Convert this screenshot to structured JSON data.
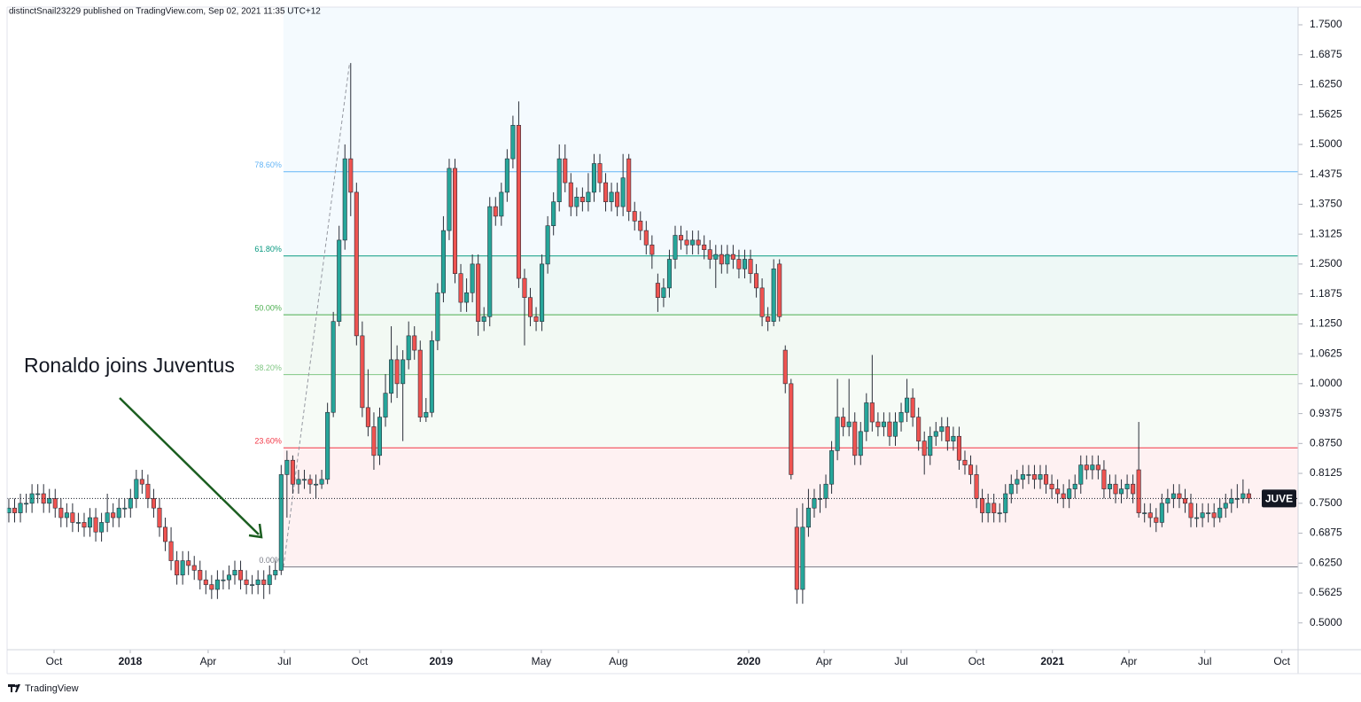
{
  "header": "distinctSnail23229 published on TradingView.com, Sep 02, 2021 11:35 UTC+12",
  "footer": "TradingView",
  "chart_data": {
    "type": "candlestick",
    "symbol": "JUVE",
    "annotation": "Ronaldo joins Juventus",
    "up_color": "#26a69a",
    "down_color": "#ef5350",
    "ylim": [
      0.444,
      1.787
    ],
    "yticks": [
      {
        "value": 0.5,
        "label": "0.5000"
      },
      {
        "value": 0.5625,
        "label": "0.5625"
      },
      {
        "value": 0.625,
        "label": "0.6250"
      },
      {
        "value": 0.6875,
        "label": "0.6875"
      },
      {
        "value": 0.75,
        "label": "0.7500"
      },
      {
        "value": 0.8125,
        "label": "0.8125"
      },
      {
        "value": 0.875,
        "label": "0.8750"
      },
      {
        "value": 0.9375,
        "label": "0.9375"
      },
      {
        "value": 1,
        "label": "1.0000"
      },
      {
        "value": 1.0625,
        "label": "1.0625"
      },
      {
        "value": 1.125,
        "label": "1.1250"
      },
      {
        "value": 1.1875,
        "label": "1.1875"
      },
      {
        "value": 1.25,
        "label": "1.2500"
      },
      {
        "value": 1.3125,
        "label": "1.3125"
      },
      {
        "value": 1.375,
        "label": "1.3750"
      },
      {
        "value": 1.4375,
        "label": "1.4375"
      },
      {
        "value": 1.5,
        "label": "1.5000"
      },
      {
        "value": 1.5625,
        "label": "1.5625"
      },
      {
        "value": 1.625,
        "label": "1.6250"
      },
      {
        "value": 1.6875,
        "label": "1.6875"
      },
      {
        "value": 1.75,
        "label": "1.7500"
      }
    ],
    "xlim": [
      -0.3,
      222.5
    ],
    "xticks": [
      {
        "value": 7.8,
        "label": "Oct"
      },
      {
        "value": 20.95,
        "label": "2018"
      },
      {
        "value": 34.4,
        "label": "Apr"
      },
      {
        "value": 47.55,
        "label": "Jul"
      },
      {
        "value": 60.55,
        "label": "Oct"
      },
      {
        "value": 74.6,
        "label": "2019"
      },
      {
        "value": 91.9,
        "label": "May"
      },
      {
        "value": 105.2,
        "label": "Aug"
      },
      {
        "value": 127.7,
        "label": "2020"
      },
      {
        "value": 140.7,
        "label": "Apr"
      },
      {
        "value": 154,
        "label": "Jul"
      },
      {
        "value": 167,
        "label": "Oct"
      },
      {
        "value": 180.1,
        "label": "2021"
      },
      {
        "value": 193.3,
        "label": "Apr"
      },
      {
        "value": 206.4,
        "label": "Jul"
      },
      {
        "value": 219.7,
        "label": "Oct"
      }
    ],
    "fibonacci": {
      "from": [
        47.4,
        0.617
      ],
      "to": [
        58.8,
        1.67
      ],
      "levels": [
        {
          "ratio": 0,
          "label": "0.00%",
          "price": 0.617,
          "color": "#787b86"
        },
        {
          "ratio": 23.6,
          "label": "23.60%",
          "price": 0.866,
          "color": "#f23645"
        },
        {
          "ratio": 38.2,
          "label": "38.20%",
          "price": 1.019,
          "color": "#81c784"
        },
        {
          "ratio": 50,
          "label": "50.00%",
          "price": 1.144,
          "color": "#4caf50"
        },
        {
          "ratio": 61.8,
          "label": "61.80%",
          "price": 1.267,
          "color": "#089981"
        },
        {
          "ratio": 78.6,
          "label": "78.60%",
          "price": 1.443,
          "color": "#64b5f6"
        }
      ]
    },
    "ohlc": [
      [
        0.73,
        0.76,
        0.71,
        0.74
      ],
      [
        0.74,
        0.76,
        0.71,
        0.73
      ],
      [
        0.73,
        0.77,
        0.71,
        0.75
      ],
      [
        0.75,
        0.77,
        0.73,
        0.75
      ],
      [
        0.75,
        0.79,
        0.73,
        0.77
      ],
      [
        0.77,
        0.79,
        0.75,
        0.77
      ],
      [
        0.77,
        0.79,
        0.73,
        0.75
      ],
      [
        0.75,
        0.78,
        0.73,
        0.76
      ],
      [
        0.76,
        0.78,
        0.72,
        0.74
      ],
      [
        0.74,
        0.76,
        0.7,
        0.72
      ],
      [
        0.72,
        0.75,
        0.7,
        0.73
      ],
      [
        0.73,
        0.75,
        0.69,
        0.71
      ],
      [
        0.71,
        0.73,
        0.69,
        0.71
      ],
      [
        0.71,
        0.73,
        0.68,
        0.7
      ],
      [
        0.7,
        0.74,
        0.68,
        0.72
      ],
      [
        0.72,
        0.74,
        0.67,
        0.69
      ],
      [
        0.69,
        0.73,
        0.67,
        0.71
      ],
      [
        0.71,
        0.77,
        0.69,
        0.73
      ],
      [
        0.73,
        0.75,
        0.7,
        0.72
      ],
      [
        0.72,
        0.76,
        0.7,
        0.74
      ],
      [
        0.74,
        0.76,
        0.72,
        0.74
      ],
      [
        0.74,
        0.78,
        0.72,
        0.76
      ],
      [
        0.76,
        0.82,
        0.74,
        0.8
      ],
      [
        0.8,
        0.82,
        0.77,
        0.79
      ],
      [
        0.79,
        0.81,
        0.74,
        0.76
      ],
      [
        0.76,
        0.78,
        0.72,
        0.74
      ],
      [
        0.74,
        0.76,
        0.68,
        0.7
      ],
      [
        0.7,
        0.72,
        0.65,
        0.67
      ],
      [
        0.67,
        0.7,
        0.61,
        0.63
      ],
      [
        0.63,
        0.65,
        0.58,
        0.6
      ],
      [
        0.6,
        0.65,
        0.58,
        0.63
      ],
      [
        0.63,
        0.65,
        0.6,
        0.62
      ],
      [
        0.62,
        0.64,
        0.59,
        0.61
      ],
      [
        0.61,
        0.63,
        0.57,
        0.59
      ],
      [
        0.59,
        0.61,
        0.56,
        0.58
      ],
      [
        0.58,
        0.6,
        0.55,
        0.57
      ],
      [
        0.57,
        0.61,
        0.55,
        0.59
      ],
      [
        0.59,
        0.61,
        0.57,
        0.59
      ],
      [
        0.59,
        0.62,
        0.57,
        0.6
      ],
      [
        0.6,
        0.63,
        0.58,
        0.61
      ],
      [
        0.61,
        0.63,
        0.57,
        0.59
      ],
      [
        0.59,
        0.61,
        0.56,
        0.58
      ],
      [
        0.58,
        0.6,
        0.56,
        0.58
      ],
      [
        0.58,
        0.61,
        0.56,
        0.59
      ],
      [
        0.59,
        0.61,
        0.55,
        0.58
      ],
      [
        0.58,
        0.62,
        0.56,
        0.6
      ],
      [
        0.6,
        0.63,
        0.59,
        0.61
      ],
      [
        0.61,
        0.83,
        0.6,
        0.81
      ],
      [
        0.81,
        0.86,
        0.72,
        0.84
      ],
      [
        0.84,
        0.85,
        0.77,
        0.79
      ],
      [
        0.79,
        0.82,
        0.77,
        0.8
      ],
      [
        0.8,
        0.82,
        0.78,
        0.8
      ],
      [
        0.8,
        0.81,
        0.77,
        0.79
      ],
      [
        0.79,
        0.81,
        0.76,
        0.79
      ],
      [
        0.79,
        0.82,
        0.78,
        0.8
      ],
      [
        0.8,
        0.96,
        0.79,
        0.94
      ],
      [
        0.94,
        1.15,
        0.93,
        1.13
      ],
      [
        1.13,
        1.33,
        1.12,
        1.3
      ],
      [
        1.3,
        1.5,
        1.28,
        1.47
      ],
      [
        1.47,
        1.67,
        1.35,
        1.4
      ],
      [
        1.4,
        1.42,
        1.08,
        1.1
      ],
      [
        1.1,
        1.13,
        0.93,
        0.95
      ],
      [
        0.95,
        1.03,
        0.89,
        0.91
      ],
      [
        0.91,
        0.94,
        0.82,
        0.85
      ],
      [
        0.85,
        0.95,
        0.83,
        0.93
      ],
      [
        0.93,
        1.02,
        0.91,
        0.98
      ],
      [
        0.98,
        1.12,
        0.96,
        1.05
      ],
      [
        1.05,
        1.08,
        0.97,
        1.0
      ],
      [
        1.0,
        1.07,
        0.88,
        1.05
      ],
      [
        1.05,
        1.13,
        1.03,
        1.1
      ],
      [
        1.1,
        1.12,
        1.05,
        1.07
      ],
      [
        1.07,
        1.09,
        0.92,
        0.93
      ],
      [
        0.93,
        0.97,
        0.92,
        0.94
      ],
      [
        0.94,
        1.11,
        0.93,
        1.09
      ],
      [
        1.09,
        1.21,
        1.07,
        1.19
      ],
      [
        1.19,
        1.35,
        1.17,
        1.32
      ],
      [
        1.32,
        1.47,
        1.3,
        1.45
      ],
      [
        1.45,
        1.47,
        1.21,
        1.23
      ],
      [
        1.23,
        1.25,
        1.15,
        1.17
      ],
      [
        1.17,
        1.22,
        1.15,
        1.19
      ],
      [
        1.19,
        1.27,
        1.17,
        1.25
      ],
      [
        1.25,
        1.27,
        1.1,
        1.13
      ],
      [
        1.13,
        1.16,
        1.11,
        1.14
      ],
      [
        1.14,
        1.39,
        1.12,
        1.37
      ],
      [
        1.37,
        1.39,
        1.33,
        1.35
      ],
      [
        1.35,
        1.42,
        1.33,
        1.4
      ],
      [
        1.4,
        1.49,
        1.38,
        1.47
      ],
      [
        1.47,
        1.56,
        1.45,
        1.54
      ],
      [
        1.54,
        1.59,
        1.2,
        1.22
      ],
      [
        1.22,
        1.24,
        1.08,
        1.18
      ],
      [
        1.18,
        1.2,
        1.12,
        1.14
      ],
      [
        1.14,
        1.16,
        1.11,
        1.13
      ],
      [
        1.13,
        1.27,
        1.11,
        1.25
      ],
      [
        1.25,
        1.35,
        1.23,
        1.33
      ],
      [
        1.33,
        1.4,
        1.31,
        1.38
      ],
      [
        1.38,
        1.5,
        1.36,
        1.47
      ],
      [
        1.47,
        1.5,
        1.4,
        1.42
      ],
      [
        1.42,
        1.44,
        1.35,
        1.37
      ],
      [
        1.37,
        1.41,
        1.35,
        1.39
      ],
      [
        1.39,
        1.41,
        1.36,
        1.38
      ],
      [
        1.38,
        1.44,
        1.36,
        1.4
      ],
      [
        1.4,
        1.48,
        1.38,
        1.46
      ],
      [
        1.46,
        1.48,
        1.4,
        1.42
      ],
      [
        1.42,
        1.44,
        1.36,
        1.38
      ],
      [
        1.38,
        1.42,
        1.36,
        1.4
      ],
      [
        1.4,
        1.42,
        1.35,
        1.37
      ],
      [
        1.37,
        1.48,
        1.35,
        1.43
      ],
      [
        1.47,
        1.48,
        1.34,
        1.36
      ],
      [
        1.36,
        1.38,
        1.32,
        1.34
      ],
      [
        1.34,
        1.36,
        1.3,
        1.32
      ],
      [
        1.32,
        1.34,
        1.27,
        1.29
      ],
      [
        1.29,
        1.31,
        1.24,
        1.27
      ],
      [
        1.21,
        1.23,
        1.15,
        1.18
      ],
      [
        1.18,
        1.22,
        1.16,
        1.2
      ],
      [
        1.2,
        1.28,
        1.18,
        1.26
      ],
      [
        1.26,
        1.33,
        1.24,
        1.31
      ],
      [
        1.31,
        1.33,
        1.28,
        1.3
      ],
      [
        1.3,
        1.32,
        1.27,
        1.29
      ],
      [
        1.29,
        1.32,
        1.27,
        1.3
      ],
      [
        1.3,
        1.32,
        1.27,
        1.29
      ],
      [
        1.29,
        1.31,
        1.26,
        1.28
      ],
      [
        1.28,
        1.3,
        1.24,
        1.26
      ],
      [
        1.26,
        1.29,
        1.2,
        1.27
      ],
      [
        1.27,
        1.29,
        1.23,
        1.25
      ],
      [
        1.25,
        1.29,
        1.23,
        1.27
      ],
      [
        1.27,
        1.29,
        1.24,
        1.26
      ],
      [
        1.26,
        1.28,
        1.22,
        1.24
      ],
      [
        1.24,
        1.28,
        1.22,
        1.26
      ],
      [
        1.26,
        1.28,
        1.21,
        1.23
      ],
      [
        1.23,
        1.25,
        1.18,
        1.2
      ],
      [
        1.2,
        1.22,
        1.12,
        1.14
      ],
      [
        1.14,
        1.16,
        1.11,
        1.13
      ],
      [
        1.13,
        1.26,
        1.12,
        1.24
      ],
      [
        1.25,
        1.26,
        1.13,
        1.14
      ],
      [
        1.07,
        1.08,
        0.98,
        1.0
      ],
      [
        1.0,
        1.01,
        0.8,
        0.81
      ],
      [
        0.7,
        0.74,
        0.54,
        0.57
      ],
      [
        0.57,
        0.75,
        0.54,
        0.7
      ],
      [
        0.7,
        0.78,
        0.68,
        0.74
      ],
      [
        0.74,
        0.78,
        0.72,
        0.76
      ],
      [
        0.76,
        0.79,
        0.73,
        0.76
      ],
      [
        0.76,
        0.81,
        0.74,
        0.79
      ],
      [
        0.79,
        0.88,
        0.77,
        0.86
      ],
      [
        0.86,
        1.01,
        0.84,
        0.93
      ],
      [
        0.93,
        0.95,
        0.89,
        0.91
      ],
      [
        0.91,
        1.01,
        0.89,
        0.92
      ],
      [
        0.92,
        0.94,
        0.83,
        0.85
      ],
      [
        0.85,
        0.92,
        0.83,
        0.9
      ],
      [
        0.9,
        0.98,
        0.88,
        0.96
      ],
      [
        0.96,
        1.06,
        0.9,
        0.92
      ],
      [
        0.92,
        0.94,
        0.89,
        0.91
      ],
      [
        0.91,
        0.94,
        0.89,
        0.92
      ],
      [
        0.92,
        0.94,
        0.87,
        0.89
      ],
      [
        0.89,
        0.94,
        0.87,
        0.92
      ],
      [
        0.92,
        0.96,
        0.9,
        0.94
      ],
      [
        0.94,
        1.01,
        0.92,
        0.97
      ],
      [
        0.97,
        0.99,
        0.91,
        0.93
      ],
      [
        0.93,
        0.95,
        0.86,
        0.88
      ],
      [
        0.88,
        0.9,
        0.81,
        0.85
      ],
      [
        0.85,
        0.91,
        0.83,
        0.89
      ],
      [
        0.89,
        0.92,
        0.87,
        0.9
      ],
      [
        0.9,
        0.93,
        0.88,
        0.91
      ],
      [
        0.91,
        0.93,
        0.86,
        0.88
      ],
      [
        0.88,
        0.91,
        0.86,
        0.89
      ],
      [
        0.89,
        0.91,
        0.82,
        0.84
      ],
      [
        0.84,
        0.86,
        0.81,
        0.83
      ],
      [
        0.83,
        0.85,
        0.79,
        0.81
      ],
      [
        0.81,
        0.83,
        0.74,
        0.76
      ],
      [
        0.76,
        0.78,
        0.71,
        0.73
      ],
      [
        0.73,
        0.77,
        0.71,
        0.75
      ],
      [
        0.75,
        0.77,
        0.71,
        0.73
      ],
      [
        0.73,
        0.75,
        0.71,
        0.73
      ],
      [
        0.73,
        0.79,
        0.71,
        0.77
      ],
      [
        0.77,
        0.81,
        0.75,
        0.79
      ],
      [
        0.79,
        0.82,
        0.77,
        0.8
      ],
      [
        0.8,
        0.83,
        0.78,
        0.81
      ],
      [
        0.81,
        0.83,
        0.79,
        0.81
      ],
      [
        0.81,
        0.83,
        0.78,
        0.8
      ],
      [
        0.8,
        0.83,
        0.78,
        0.81
      ],
      [
        0.81,
        0.83,
        0.77,
        0.79
      ],
      [
        0.79,
        0.81,
        0.76,
        0.78
      ],
      [
        0.78,
        0.8,
        0.75,
        0.77
      ],
      [
        0.77,
        0.79,
        0.74,
        0.76
      ],
      [
        0.76,
        0.8,
        0.74,
        0.78
      ],
      [
        0.78,
        0.81,
        0.76,
        0.79
      ],
      [
        0.79,
        0.85,
        0.77,
        0.83
      ],
      [
        0.83,
        0.85,
        0.8,
        0.82
      ],
      [
        0.82,
        0.85,
        0.8,
        0.83
      ],
      [
        0.83,
        0.85,
        0.8,
        0.82
      ],
      [
        0.82,
        0.84,
        0.76,
        0.78
      ],
      [
        0.78,
        0.81,
        0.76,
        0.79
      ],
      [
        0.79,
        0.81,
        0.75,
        0.77
      ],
      [
        0.77,
        0.8,
        0.75,
        0.78
      ],
      [
        0.78,
        0.81,
        0.76,
        0.79
      ],
      [
        0.79,
        0.81,
        0.75,
        0.77
      ],
      [
        0.82,
        0.92,
        0.72,
        0.73
      ],
      [
        0.73,
        0.75,
        0.71,
        0.73
      ],
      [
        0.73,
        0.75,
        0.7,
        0.72
      ],
      [
        0.72,
        0.74,
        0.69,
        0.71
      ],
      [
        0.71,
        0.77,
        0.7,
        0.75
      ],
      [
        0.75,
        0.78,
        0.73,
        0.76
      ],
      [
        0.76,
        0.79,
        0.74,
        0.77
      ],
      [
        0.77,
        0.79,
        0.74,
        0.76
      ],
      [
        0.76,
        0.78,
        0.73,
        0.75
      ],
      [
        0.75,
        0.77,
        0.7,
        0.72
      ],
      [
        0.72,
        0.75,
        0.7,
        0.72
      ],
      [
        0.72,
        0.75,
        0.7,
        0.73
      ],
      [
        0.73,
        0.75,
        0.71,
        0.73
      ],
      [
        0.73,
        0.75,
        0.7,
        0.72
      ],
      [
        0.72,
        0.76,
        0.71,
        0.74
      ],
      [
        0.74,
        0.77,
        0.72,
        0.75
      ],
      [
        0.75,
        0.78,
        0.73,
        0.76
      ],
      [
        0.76,
        0.79,
        0.74,
        0.76
      ],
      [
        0.76,
        0.8,
        0.75,
        0.77
      ],
      [
        0.77,
        0.78,
        0.75,
        0.76
      ]
    ]
  }
}
